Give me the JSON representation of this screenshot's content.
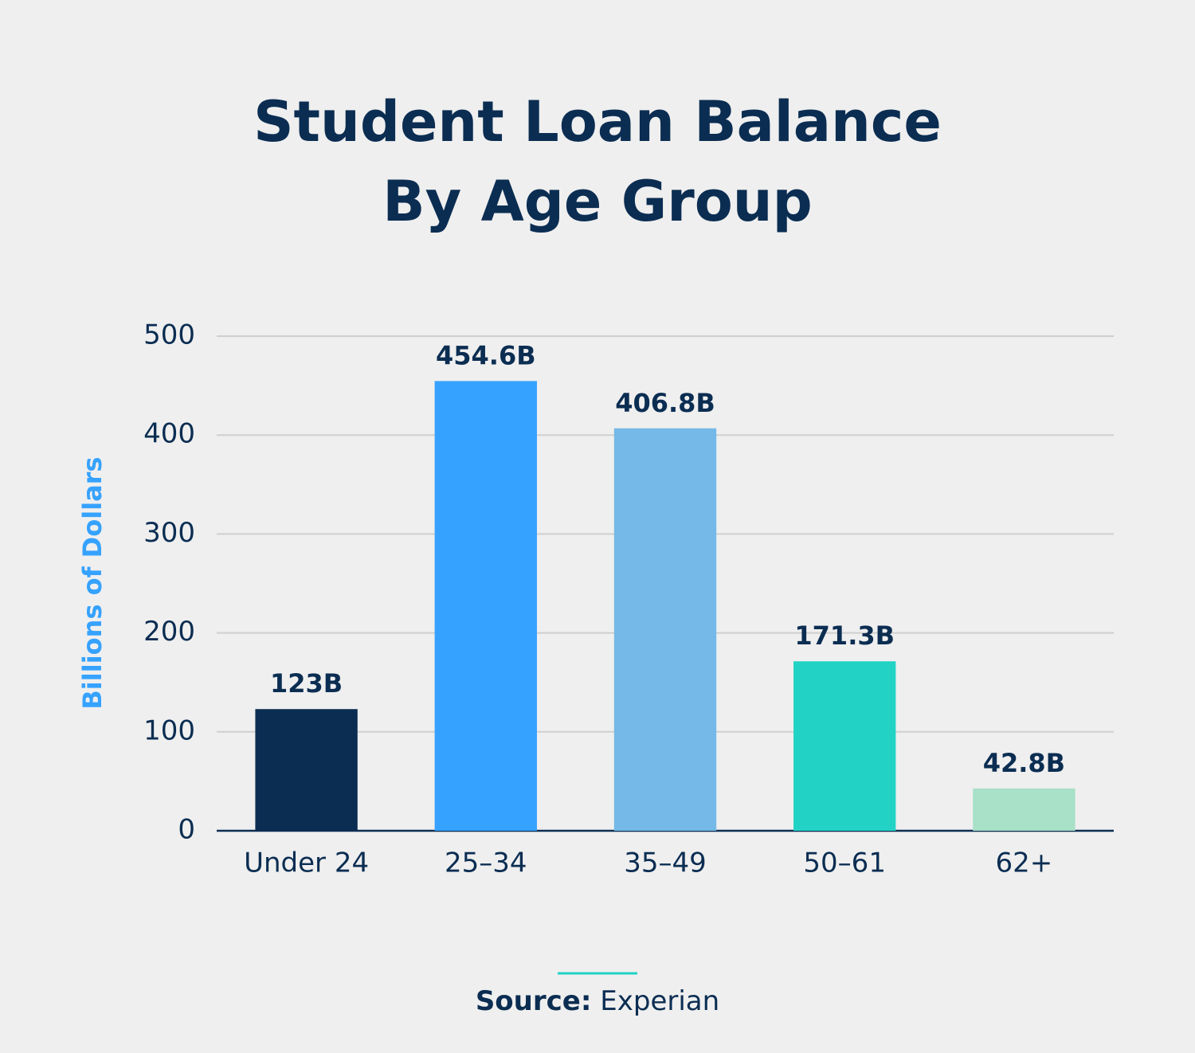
{
  "chart_data": {
    "type": "bar",
    "title": [
      "Student Loan Balance",
      "By Age Group"
    ],
    "y_label": "Billions of Dollars",
    "categories": [
      "Under 24",
      "25–34",
      "35–49",
      "50–61",
      "62+"
    ],
    "values": [
      123,
      454.6,
      406.8,
      171.3,
      42.8
    ],
    "value_labels": [
      "123B",
      "454.6B",
      "406.8B",
      "171.3B",
      "42.8B"
    ],
    "colors": [
      "#0b2d52",
      "#36a2ff",
      "#74b9e7",
      "#22d3c5",
      "#a8e0c8"
    ],
    "ylim": [
      0,
      500
    ],
    "yticks": [
      0,
      100,
      200,
      300,
      400,
      500
    ],
    "grid": true,
    "source_label": "Source:",
    "source": "Experian"
  }
}
